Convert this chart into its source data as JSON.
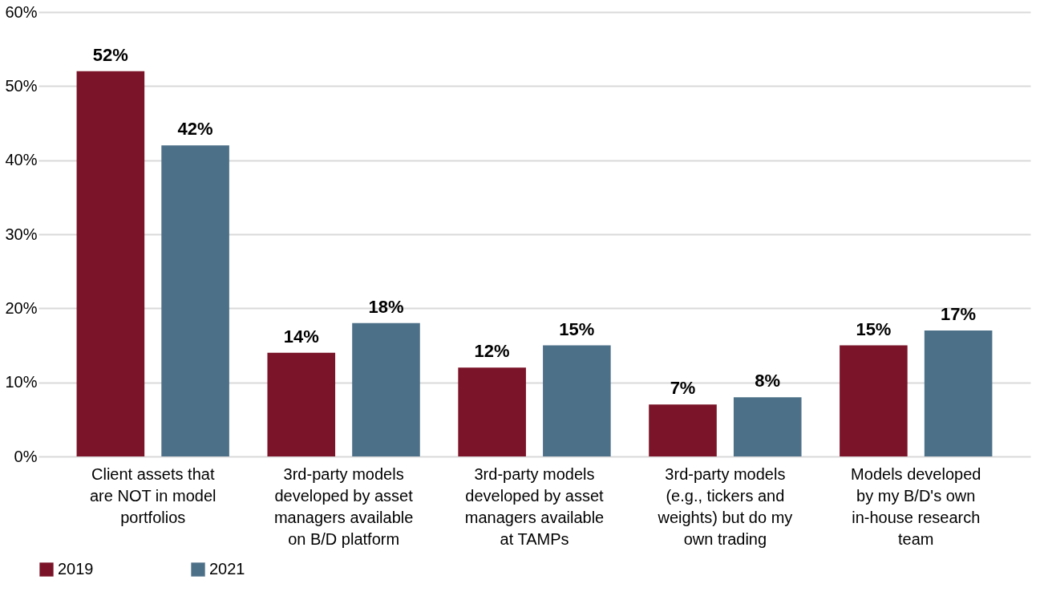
{
  "chart_data": {
    "type": "bar",
    "categories": [
      "Client assets that are NOT in model portfolios",
      "3rd-party models developed by asset managers available on B/D platform",
      "3rd-party models developed by asset managers available at TAMPs",
      "3rd-party models (e.g., tickers and weights) but do my own trading",
      "Models developed by my B/D's own in-house research team"
    ],
    "series": [
      {
        "name": "2019",
        "color": "#7b1428",
        "values": [
          52,
          14,
          12,
          7,
          15
        ],
        "value_labels": [
          "52%",
          "14%",
          "12%",
          "7%",
          "15%"
        ]
      },
      {
        "name": "2021",
        "color": "#4d7089",
        "values": [
          42,
          18,
          15,
          8,
          17
        ],
        "value_labels": [
          "42%",
          "18%",
          "15%",
          "8%",
          "17%"
        ]
      }
    ],
    "ylim": [
      0,
      60
    ],
    "yticks": [
      {
        "value": 0,
        "label": "0%"
      },
      {
        "value": 10,
        "label": "10%"
      },
      {
        "value": 20,
        "label": "20%"
      },
      {
        "value": 30,
        "label": "30%"
      },
      {
        "value": 40,
        "label": "40%"
      },
      {
        "value": 50,
        "label": "50%"
      },
      {
        "value": 60,
        "label": "60%"
      }
    ],
    "grid": "y",
    "legend": "bottom"
  }
}
